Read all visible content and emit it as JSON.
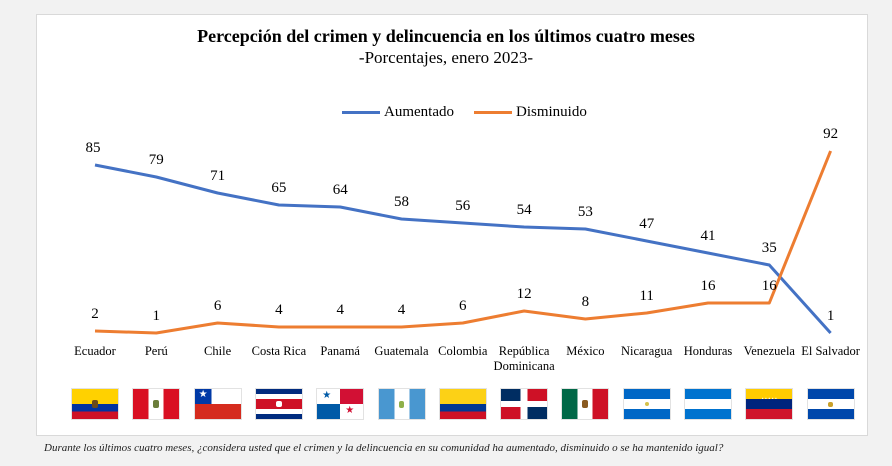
{
  "chart_data": {
    "type": "line",
    "title": "Percepción del crimen y delincuencia en los últimos cuatro meses",
    "subtitle": "-Porcentajes, enero 2023-",
    "categories": [
      "Ecuador",
      "Perú",
      "Chile",
      "Costa Rica",
      "Panamá",
      "Guatemala",
      "Colombia",
      "República Dominicana",
      "México",
      "Nicaragua",
      "Honduras",
      "Venezuela",
      "El Salvador"
    ],
    "category_lines": [
      [
        "Ecuador"
      ],
      [
        "Perú"
      ],
      [
        "Chile"
      ],
      [
        "Costa Rica"
      ],
      [
        "Panamá"
      ],
      [
        "Guatemala"
      ],
      [
        "Colombia"
      ],
      [
        "República",
        "Dominicana"
      ],
      [
        "México"
      ],
      [
        "Nicaragua"
      ],
      [
        "Honduras"
      ],
      [
        "Venezuela"
      ],
      [
        "El Salvador"
      ]
    ],
    "series": [
      {
        "name": "Aumentado",
        "color": "#4472c4",
        "values": [
          85,
          79,
          71,
          65,
          64,
          58,
          56,
          54,
          53,
          47,
          41,
          35,
          1
        ]
      },
      {
        "name": "Disminuido",
        "color": "#ed7d31",
        "values": [
          2,
          1,
          6,
          4,
          4,
          4,
          6,
          12,
          8,
          11,
          16,
          16,
          92
        ]
      }
    ],
    "ylim": [
      0,
      100
    ],
    "grid": false,
    "legend_position": "top",
    "flags": [
      "ecuador-flag",
      "peru-flag",
      "chile-flag",
      "costa-rica-flag",
      "panama-flag",
      "guatemala-flag",
      "colombia-flag",
      "dominican-republic-flag",
      "mexico-flag",
      "nicaragua-flag",
      "honduras-flag",
      "venezuela-flag",
      "el-salvador-flag"
    ]
  },
  "footnote": "Durante los últimos cuatro meses, ¿considera usted que el crimen y la delincuencia en su comunidad ha aumentado, disminuido o se ha mantenido igual?"
}
